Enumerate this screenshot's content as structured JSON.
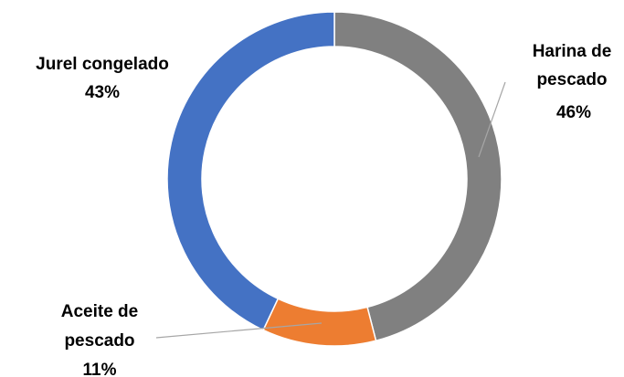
{
  "chart_data": {
    "type": "pie",
    "variant": "donut",
    "title": "",
    "legend": "none",
    "slices": [
      {
        "name": "Harina de pescado",
        "label_lines": [
          "Harina de",
          "pescado"
        ],
        "percent_label": "46%",
        "value": 46,
        "color": "#808080"
      },
      {
        "name": "Aceite de pescado",
        "label_lines": [
          "Aceite de",
          "pescado"
        ],
        "percent_label": "11%",
        "value": 11,
        "color": "#ED7D31"
      },
      {
        "name": "Jurel congelado",
        "label_lines": [
          "Jurel congelado"
        ],
        "percent_label": "43%",
        "value": 43,
        "color": "#4472C4"
      }
    ]
  }
}
